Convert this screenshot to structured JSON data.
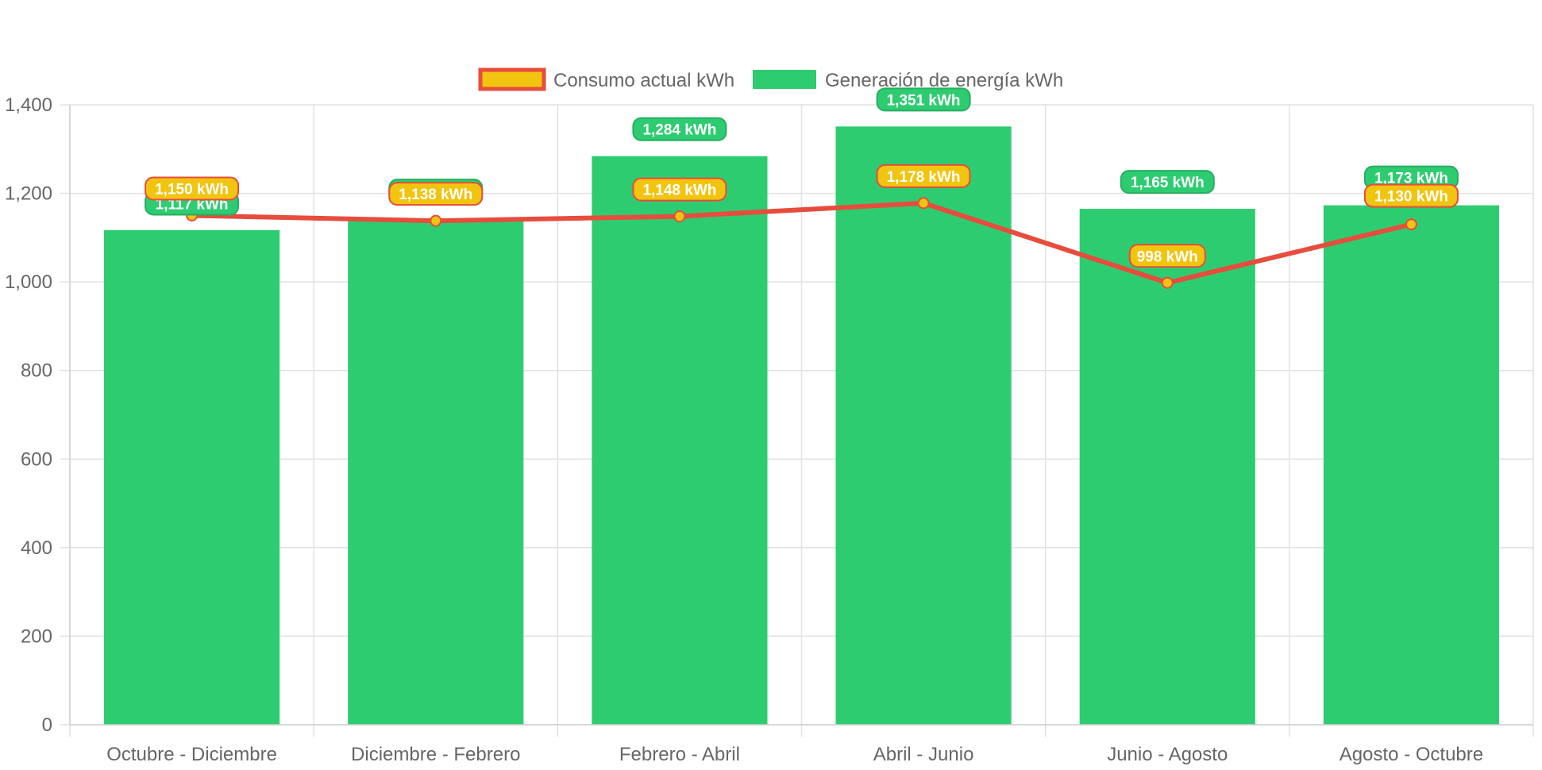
{
  "chart_data": {
    "type": "bar",
    "categories": [
      "Octubre - Diciembre",
      "Diciembre - Febrero",
      "Febrero - Abril",
      "Abril - Junio",
      "Junio - Agosto",
      "Agosto - Octubre"
    ],
    "series": [
      {
        "name": "Consumo actual kWh",
        "type": "line",
        "values": [
          1150,
          1138,
          1148,
          1178,
          998,
          1130
        ],
        "labels": [
          "1,150 kWh",
          "1,138 kWh",
          "1,148 kWh",
          "1,178 kWh",
          "998 kWh",
          "1,130 kWh"
        ],
        "color": "#e74c3c",
        "fill": "#f1c40f"
      },
      {
        "name": "Generación de energía kWh",
        "type": "bar",
        "values": [
          1117,
          1138,
          1284,
          1351,
          1165,
          1173
        ],
        "labels": [
          "1,117 kWh",
          "1,138 kWh",
          "1,284 kWh",
          "1,351 kWh",
          "1,165 kWh",
          "1,173 kWh"
        ],
        "color": "#2ecc71",
        "border": "#27ae60"
      }
    ],
    "ylim": [
      0,
      1400
    ],
    "yticks": [
      "0",
      "200",
      "400",
      "600",
      "800",
      "1,000",
      "1,200",
      "1,400"
    ],
    "ytick_values": [
      0,
      200,
      400,
      600,
      800,
      1000,
      1200,
      1400
    ],
    "grid": true,
    "legend_position": "top-center",
    "title": "",
    "xlabel": "",
    "ylabel": ""
  }
}
